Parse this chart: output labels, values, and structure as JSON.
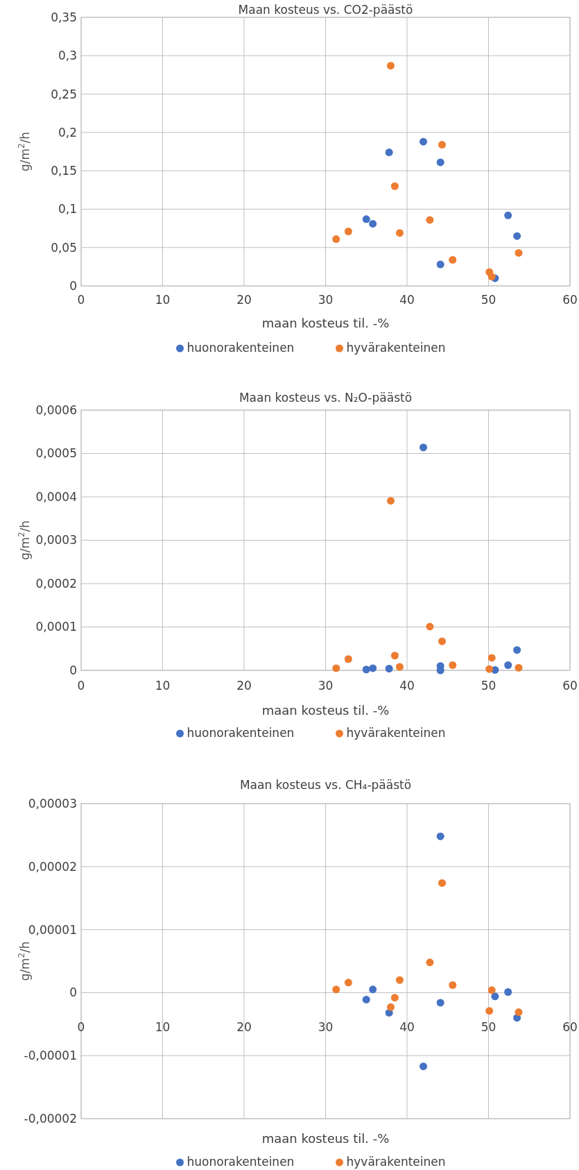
{
  "chart_data": [
    {
      "type": "scatter",
      "title": "Maan kosteus vs. CO2-päästö",
      "xlabel": "maan kosteus til. -%",
      "ylabel": "g/m$^{2}$/h",
      "xlim": [
        0,
        60
      ],
      "xticks": [
        0,
        10,
        20,
        30,
        40,
        50,
        60
      ],
      "ylim": [
        0,
        0.35
      ],
      "yticks": [
        {
          "value": 0,
          "label": "0"
        },
        {
          "value": 0.05,
          "label": "0,05"
        },
        {
          "value": 0.1,
          "label": "0,1"
        },
        {
          "value": 0.15,
          "label": "0,15"
        },
        {
          "value": 0.2,
          "label": "0,2"
        },
        {
          "value": 0.25,
          "label": "0,25"
        },
        {
          "value": 0.3,
          "label": "0,3"
        },
        {
          "value": 0.35,
          "label": "0,35"
        }
      ],
      "grid": true,
      "legend": "bottom",
      "marker": "circle",
      "series": [
        {
          "name": "huonorakenteinen",
          "color": "#4472c4",
          "x": [
            35.0,
            35.8,
            37.8,
            42.0,
            44.1,
            44.1,
            50.8,
            52.4,
            53.5
          ],
          "values": [
            0.087,
            0.081,
            0.174,
            0.188,
            0.161,
            0.028,
            0.01,
            0.092,
            0.065
          ]
        },
        {
          "name": "hyvärakenteinen",
          "color": "#ed7d31",
          "x": [
            31.3,
            32.8,
            38.0,
            38.5,
            39.1,
            42.8,
            44.3,
            45.6,
            50.1,
            50.4,
            53.7
          ],
          "values": [
            0.061,
            0.071,
            0.287,
            0.13,
            0.069,
            0.086,
            0.184,
            0.034,
            0.018,
            0.012,
            0.043
          ]
        }
      ]
    },
    {
      "type": "scatter",
      "title": "Maan kosteus vs. N₂O-päästö",
      "xlabel": "maan kosteus til. -%",
      "ylabel": "g/m$^{2}$/h",
      "xlim": [
        0,
        60
      ],
      "xticks": [
        0,
        10,
        20,
        30,
        40,
        50,
        60
      ],
      "ylim": [
        0,
        0.0006
      ],
      "yticks": [
        {
          "value": 0,
          "label": "0"
        },
        {
          "value": 0.0001,
          "label": "0,0001"
        },
        {
          "value": 0.0002,
          "label": "0,0002"
        },
        {
          "value": 0.0003,
          "label": "0,0003"
        },
        {
          "value": 0.0004,
          "label": "0,0004"
        },
        {
          "value": 0.0005,
          "label": "0,0005"
        },
        {
          "value": 0.0006,
          "label": "0,0006"
        }
      ],
      "grid": true,
      "legend": "bottom",
      "marker": "circle",
      "series": [
        {
          "name": "huonorakenteinen",
          "color": "#4472c4",
          "x": [
            35.0,
            35.8,
            37.8,
            42.0,
            44.1,
            44.1,
            50.8,
            52.4,
            53.5
          ],
          "values": [
            2e-06,
            5e-06,
            4e-06,
            0.000514,
            1e-05,
            0.0,
            1e-06,
            1.2e-05,
            4.7e-05
          ]
        },
        {
          "name": "hyvärakenteinen",
          "color": "#ed7d31",
          "x": [
            31.3,
            32.8,
            38.0,
            38.5,
            39.1,
            42.8,
            44.3,
            45.6,
            50.1,
            50.4,
            53.7
          ],
          "values": [
            5e-06,
            2.6e-05,
            0.000391,
            3.4e-05,
            8e-06,
            0.000101,
            6.7e-05,
            1.2e-05,
            3e-06,
            2.9e-05,
            6e-06
          ]
        }
      ]
    },
    {
      "type": "scatter",
      "title": "Maan kosteus vs. CH₄-päästö",
      "xlabel": "maan kosteus til. -%",
      "ylabel": "g/m$^{2}$/h",
      "xlim": [
        0,
        60
      ],
      "xticks": [
        0,
        10,
        20,
        30,
        40,
        50,
        60
      ],
      "ylim": [
        -2e-05,
        3e-05
      ],
      "yticks": [
        {
          "value": -2e-05,
          "label": "-0,00002"
        },
        {
          "value": -1e-05,
          "label": "-0,00001"
        },
        {
          "value": 0,
          "label": "0"
        },
        {
          "value": 1e-05,
          "label": "0,00001"
        },
        {
          "value": 2e-05,
          "label": "0,00002"
        },
        {
          "value": 3e-05,
          "label": "0,00003"
        }
      ],
      "grid": true,
      "legend": "bottom",
      "marker": "circle",
      "series": [
        {
          "name": "huonorakenteinen",
          "color": "#4472c4",
          "x": [
            35.0,
            35.8,
            37.8,
            42.0,
            44.1,
            44.1,
            50.8,
            52.4,
            53.5
          ],
          "values": [
            -1.1e-06,
            5e-07,
            -3.2e-06,
            -1.17e-05,
            2.48e-05,
            -1.6e-06,
            -6e-07,
            1e-07,
            -4e-06
          ]
        },
        {
          "name": "hyvärakenteinen",
          "color": "#ed7d31",
          "x": [
            31.3,
            32.8,
            38.0,
            38.5,
            39.1,
            42.8,
            44.3,
            45.6,
            50.1,
            50.4,
            53.7
          ],
          "values": [
            5e-07,
            1.6e-06,
            -2.3e-06,
            -8e-07,
            2e-06,
            4.8e-06,
            1.74e-05,
            1.2e-06,
            -2.9e-06,
            4e-07,
            -3.1e-06
          ]
        }
      ]
    }
  ]
}
